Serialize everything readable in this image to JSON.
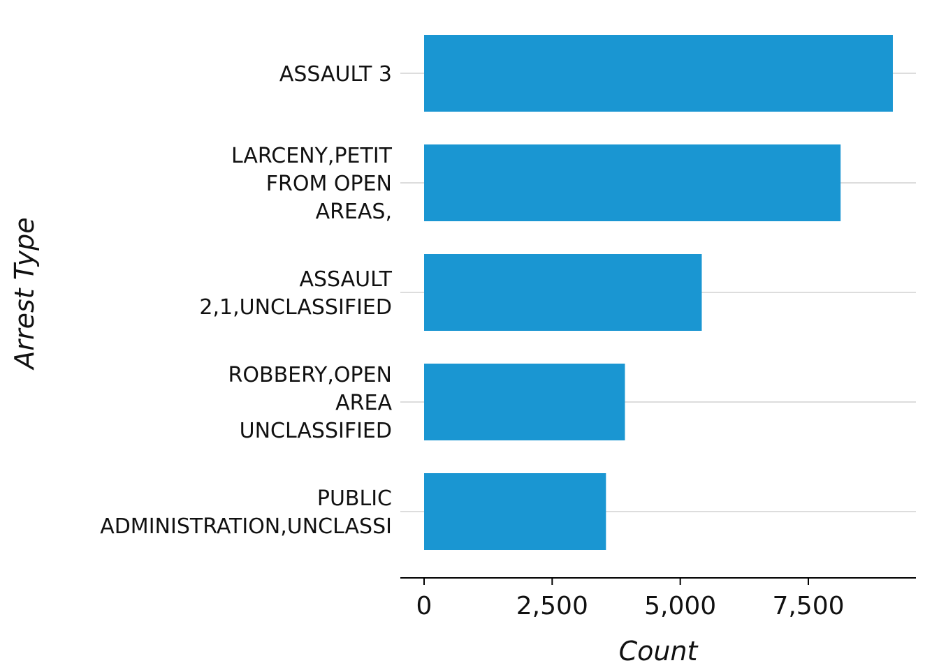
{
  "chart_data": {
    "type": "bar",
    "orientation": "horizontal",
    "categories": [
      [
        "ASSAULT 3"
      ],
      [
        "LARCENY,PETIT",
        "FROM OPEN",
        "AREAS,"
      ],
      [
        "ASSAULT",
        "2,1,UNCLASSIFIED"
      ],
      [
        "ROBBERY,OPEN",
        "AREA",
        "UNCLASSIFIED"
      ],
      [
        "PUBLIC",
        "ADMINISTRATION,UNCLASSI"
      ]
    ],
    "values": [
      9150,
      8130,
      5420,
      3920,
      3550
    ],
    "xlabel": "Count",
    "ylabel": "Arrest Type",
    "xlim": [
      0,
      10000
    ],
    "x_ticks": [
      0,
      2500,
      5000,
      7500
    ],
    "x_tick_labels": [
      "0",
      "2,500",
      "5,000",
      "7,500"
    ],
    "grid": "horizontal",
    "bar_color": "#1a96d2",
    "grid_color": "#dddddd",
    "axis_color": "#000000"
  }
}
